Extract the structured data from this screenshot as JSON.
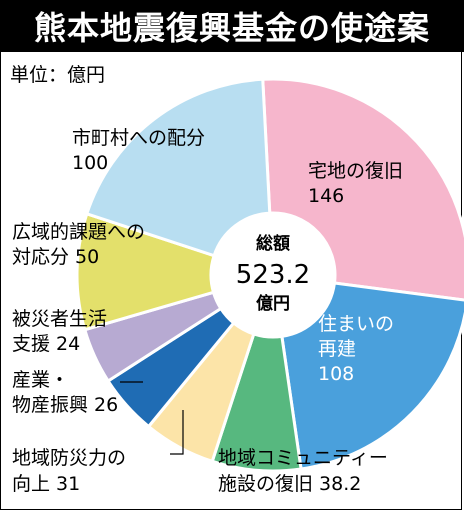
{
  "title": "熊本地震復興基金の使途案",
  "unit_label": "単位：億円",
  "chart_data": {
    "type": "pie",
    "categories": [
      "宅地の復旧",
      "住まいの再建",
      "地域コミュニティー施設の復旧",
      "地域防災力の向上",
      "産業・物産振興",
      "被災者生活支援",
      "広域的課題への対応分",
      "市町村への配分"
    ],
    "values": [
      146,
      108,
      38.2,
      31,
      26,
      24,
      50,
      100
    ],
    "colors": [
      "#f6b6cc",
      "#4aa0dc",
      "#57b87f",
      "#fce4a8",
      "#1f6cb4",
      "#b7aad2",
      "#e3e06b",
      "#b8def1"
    ],
    "center": {
      "title": "総額",
      "total": "523.2",
      "unit": "億円"
    },
    "labels": [
      {
        "lines": [
          "宅地の復旧",
          "146"
        ]
      },
      {
        "lines": [
          "住まいの",
          "再建",
          "108"
        ]
      },
      {
        "lines": [
          "地域コミュニティー",
          "施設の復旧 38.2"
        ]
      },
      {
        "lines": [
          "地域防災力の",
          "向上 31"
        ]
      },
      {
        "lines": [
          "産業・",
          "物産振興 26"
        ]
      },
      {
        "lines": [
          "被災者生活",
          "支援 24"
        ]
      },
      {
        "lines": [
          "広域的課題への",
          "対応分 50"
        ]
      },
      {
        "lines": [
          "市町村への配分",
          "100"
        ]
      }
    ]
  }
}
